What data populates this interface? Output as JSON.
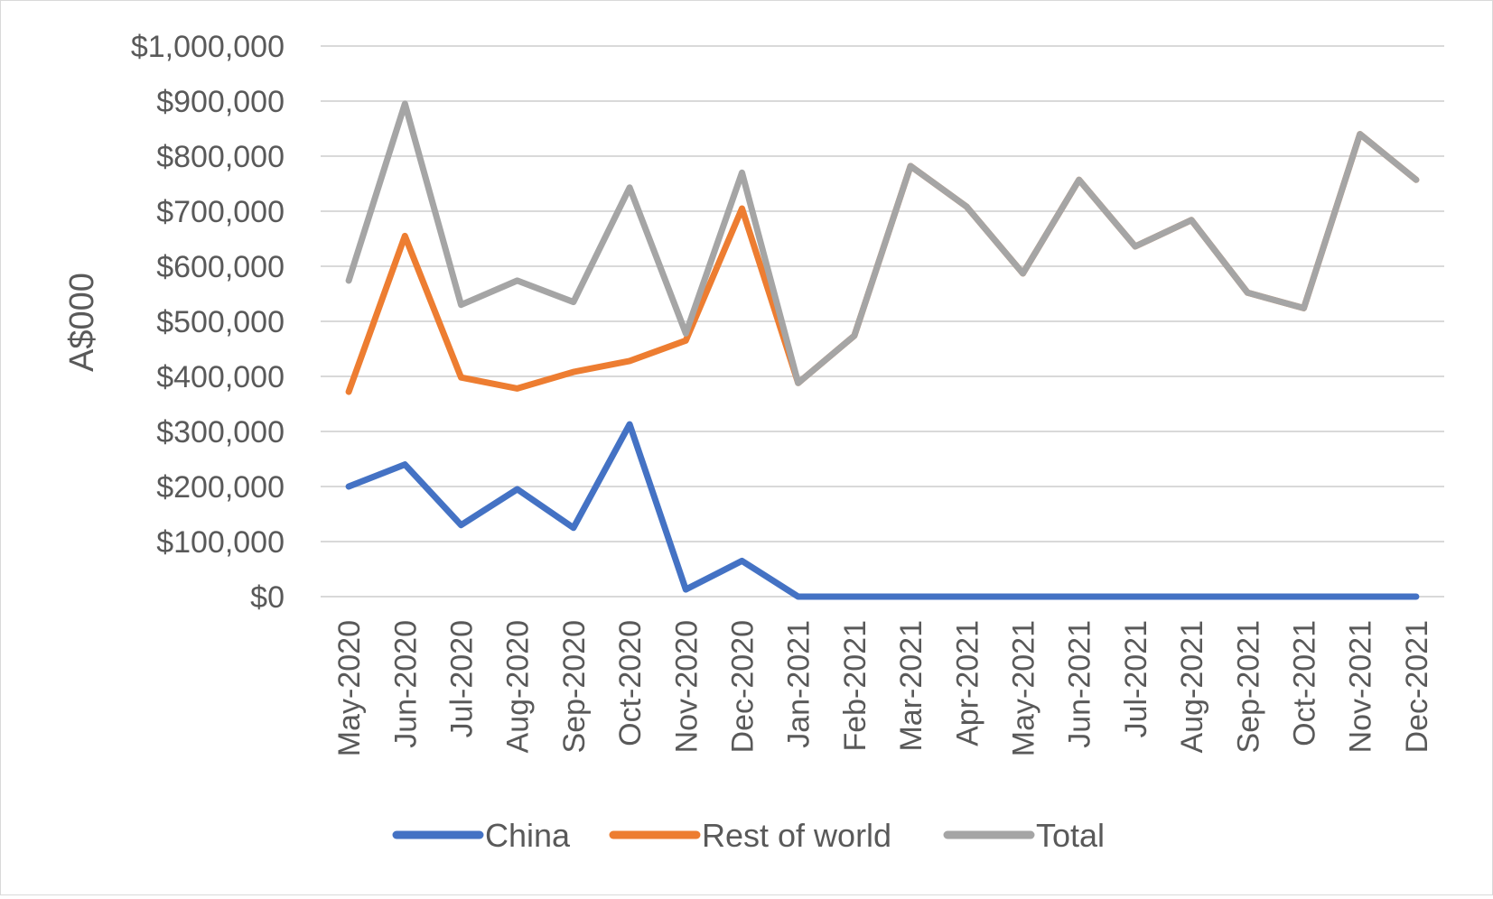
{
  "chart_data": {
    "type": "line",
    "title": "",
    "xlabel": "",
    "ylabel": "A$000",
    "ylim": [
      0,
      1000000
    ],
    "y_ticks": [
      0,
      100000,
      200000,
      300000,
      400000,
      500000,
      600000,
      700000,
      800000,
      900000,
      1000000
    ],
    "y_tick_labels": [
      "$0",
      "$100,000",
      "$200,000",
      "$300,000",
      "$400,000",
      "$500,000",
      "$600,000",
      "$700,000",
      "$800,000",
      "$900,000",
      "$1,000,000"
    ],
    "grid": true,
    "legend_position": "bottom",
    "categories": [
      "May-2020",
      "Jun-2020",
      "Jul-2020",
      "Aug-2020",
      "Sep-2020",
      "Oct-2020",
      "Nov-2020",
      "Dec-2020",
      "Jan-2021",
      "Feb-2021",
      "Mar-2021",
      "Apr-2021",
      "May-2021",
      "Jun-2021",
      "Jul-2021",
      "Aug-2021",
      "Sep-2021",
      "Oct-2021",
      "Nov-2021",
      "Dec-2021"
    ],
    "series": [
      {
        "name": "China",
        "color": "#4472C4",
        "values": [
          200000,
          240000,
          130000,
          195000,
          125000,
          313000,
          13000,
          65000,
          0,
          0,
          0,
          0,
          0,
          0,
          0,
          0,
          0,
          0,
          0,
          0
        ]
      },
      {
        "name": "Rest of world",
        "color": "#ED7D31",
        "values": [
          372000,
          655000,
          398000,
          378000,
          408000,
          428000,
          465000,
          705000,
          388000,
          474000,
          782000,
          708000,
          587000,
          757000,
          636000,
          684000,
          552000,
          524000,
          840000,
          757000
        ]
      },
      {
        "name": "Total",
        "color": "#A5A5A5",
        "values": [
          574000,
          895000,
          530000,
          574000,
          535000,
          743000,
          478000,
          770000,
          388000,
          474000,
          782000,
          708000,
          587000,
          757000,
          636000,
          684000,
          552000,
          524000,
          840000,
          757000
        ]
      }
    ]
  }
}
